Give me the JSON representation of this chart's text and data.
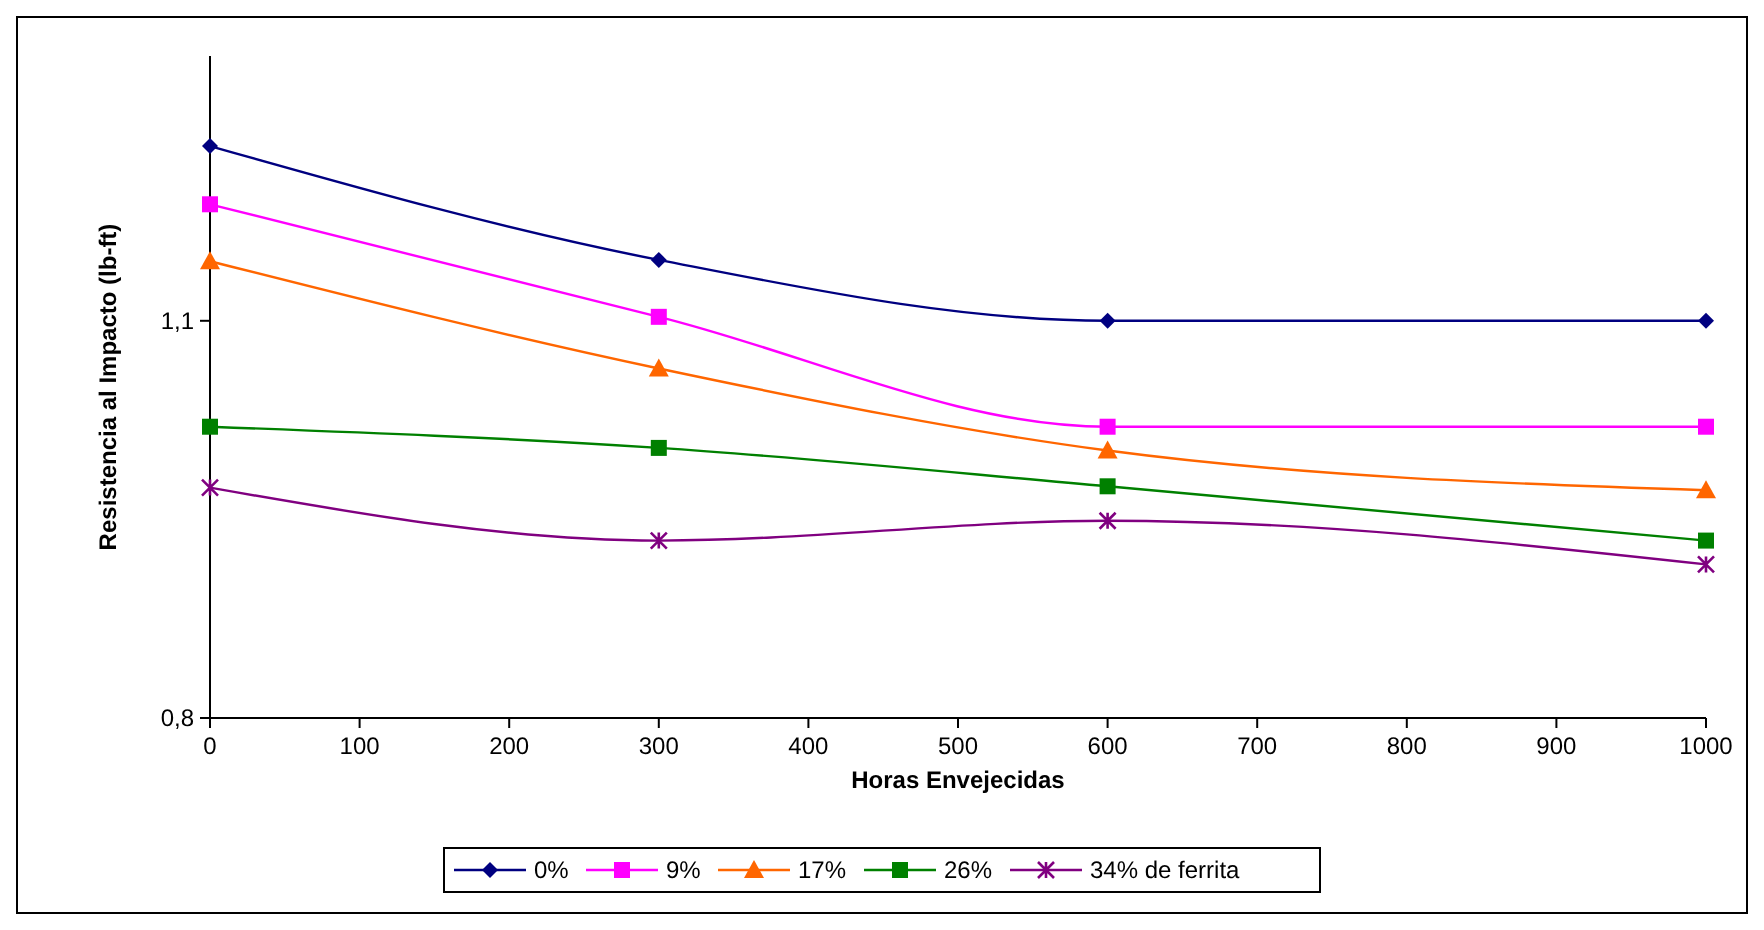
{
  "chart_data": {
    "type": "line",
    "xlabel": "Horas Envejecidas",
    "ylabel": "Resistencia al Impacto (lb-ft)",
    "x": [
      0,
      300,
      600,
      1000
    ],
    "xlim": [
      0,
      1000
    ],
    "xticks": [
      0,
      100,
      200,
      300,
      400,
      500,
      600,
      700,
      800,
      900,
      1000
    ],
    "ylim": [
      0.8,
      1.3
    ],
    "yticks": [
      {
        "value": 0.8,
        "label": "0,8"
      },
      {
        "value": 1.1,
        "label": "1,1"
      }
    ],
    "grid": false,
    "legend": "bottom",
    "line_style": "solid",
    "series": [
      {
        "name": "0%",
        "color": "#000080",
        "marker": "diamond",
        "values": [
          1.232,
          1.146,
          1.1,
          1.1
        ]
      },
      {
        "name": "9%",
        "color": "#ff00ff",
        "marker": "square",
        "values": [
          1.188,
          1.103,
          1.02,
          1.02
        ]
      },
      {
        "name": "17%",
        "color": "#ff6600",
        "marker": "triangle",
        "values": [
          1.145,
          1.064,
          1.002,
          0.972
        ]
      },
      {
        "name": "26%",
        "color": "#008000",
        "marker": "square",
        "values": [
          1.02,
          1.004,
          0.975,
          0.934
        ]
      },
      {
        "name": "34% de ferrita",
        "color": "#800080",
        "marker": "cross",
        "values": [
          0.974,
          0.934,
          0.949,
          0.916
        ]
      }
    ]
  }
}
